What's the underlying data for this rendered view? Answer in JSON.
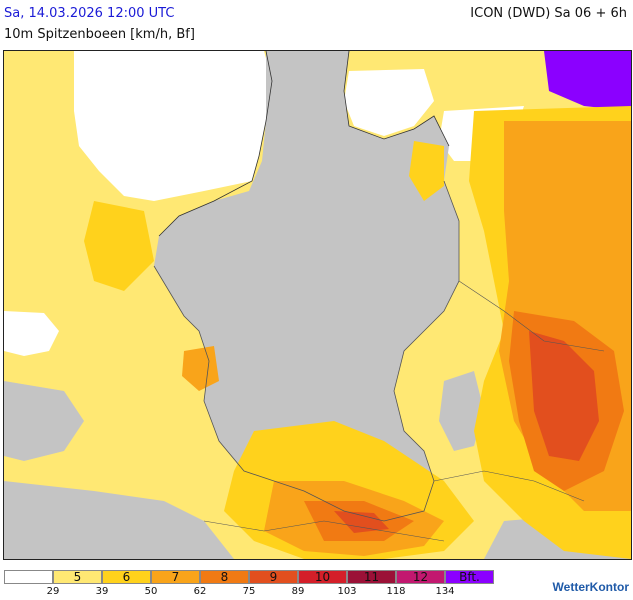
{
  "header": {
    "date": "Sa, 14.03.2026 12:00 UTC",
    "model": "ICON (DWD) Sa 06 + 6h",
    "parameter": "10m Spitzenboeen [km/h, Bf]"
  },
  "colors": {
    "land_gray": "#c4c4c4",
    "sea_white": "#ffffff",
    "bf5": "#ffe873",
    "bf6": "#ffd21c",
    "bf7": "#f9a41a",
    "bf8": "#f17a13",
    "bf9": "#e24f1e",
    "bf10": "#d41f29",
    "bf11": "#9b1137",
    "bf12": "#c2186f",
    "bf_max": "#8b00ff"
  },
  "legend": {
    "boxes": [
      {
        "bf": "",
        "color": "#ffffff"
      },
      {
        "bf": "5",
        "color": "#ffe873"
      },
      {
        "bf": "6",
        "color": "#ffd21c"
      },
      {
        "bf": "7",
        "color": "#f9a41a"
      },
      {
        "bf": "8",
        "color": "#f17a13"
      },
      {
        "bf": "9",
        "color": "#e24f1e"
      },
      {
        "bf": "10",
        "color": "#d41f29"
      },
      {
        "bf": "11",
        "color": "#9b1137"
      },
      {
        "bf": "12",
        "color": "#c2186f"
      },
      {
        "bf": "Bft.",
        "color": "#8b00ff"
      }
    ],
    "kmh": [
      "29",
      "39",
      "50",
      "62",
      "75",
      "89",
      "103",
      "118",
      "134"
    ]
  },
  "brand": "WetterKontor",
  "brand_icon": "wetterkontor-logo-icon"
}
